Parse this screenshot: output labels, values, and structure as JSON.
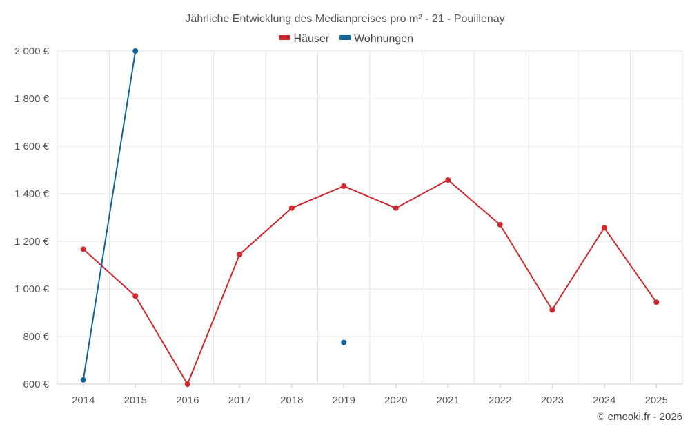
{
  "chart_data": {
    "type": "line",
    "title": "Jährliche Entwicklung des Medianpreises pro m² - 21 - Pouillenay",
    "x": [
      "2014",
      "2015",
      "2016",
      "2017",
      "2018",
      "2019",
      "2020",
      "2021",
      "2022",
      "2023",
      "2024",
      "2025"
    ],
    "ylim": [
      600,
      2000
    ],
    "yticks": [
      600,
      800,
      1000,
      1200,
      1400,
      1600,
      1800,
      2000
    ],
    "ytick_labels": [
      "600 €",
      "800 €",
      "1 000 €",
      "1 200 €",
      "1 400 €",
      "1 600 €",
      "1 800 €",
      "2 000 €"
    ],
    "grid": true,
    "legend_position": "top-center",
    "series": [
      {
        "name": "Häuser",
        "color": "#d0282c",
        "values": [
          1167,
          970,
          600,
          1145,
          1340,
          1432,
          1340,
          1458,
          1270,
          912,
          1257,
          944
        ]
      },
      {
        "name": "Wohnungen",
        "color": "#0e6499",
        "values": [
          618,
          2000,
          null,
          null,
          null,
          775,
          null,
          null,
          null,
          null,
          null,
          null
        ]
      }
    ]
  },
  "credit": "© emooki.fr - 2026"
}
